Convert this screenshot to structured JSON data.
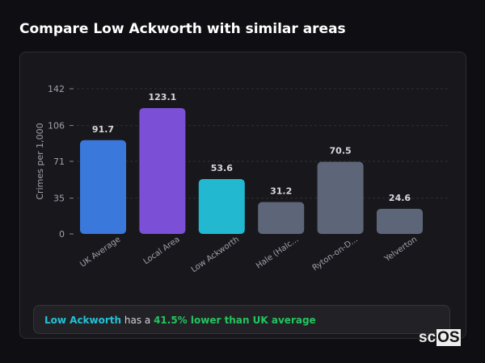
{
  "title": "Compare Low Ackworth with similar areas",
  "chart_data": {
    "type": "bar",
    "ylabel": "Crimes per 1,000",
    "yticks": [
      0,
      35,
      71,
      106,
      142
    ],
    "ylim": [
      0,
      142
    ],
    "grid": true,
    "categories": [
      "UK Average",
      "Local Area",
      "Low Ackworth",
      "Hale (Halc...",
      "Ryton-on-D...",
      "Yelverton"
    ],
    "values": [
      91.7,
      123.1,
      53.6,
      31.2,
      70.5,
      24.6
    ],
    "value_labels": [
      "91.7",
      "123.1",
      "53.6",
      "31.2",
      "70.5",
      "24.6"
    ],
    "colors": [
      "#3b78dc",
      "#7b4fd6",
      "#22b8cf",
      "#5d6678",
      "#5d6678",
      "#5d6678"
    ]
  },
  "summary": {
    "area": "Low Ackworth",
    "middle": " has a ",
    "result": "41.5% lower than UK average"
  },
  "logo": {
    "prefix": "sc",
    "box": "OS"
  }
}
